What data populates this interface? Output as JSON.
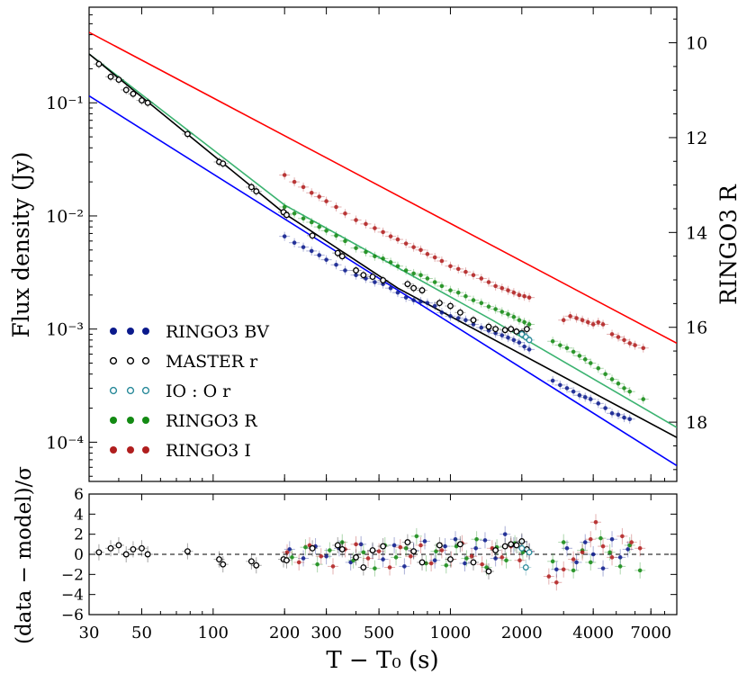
{
  "chart_data": [
    {
      "type": "scatter",
      "panel": "main",
      "xlabel": "T − T₀ (s)",
      "ylabel": "Flux density (Jy)",
      "ylabel_right": "RINGO3 R",
      "x_scale": "log",
      "y_scale": "log",
      "xlim": [
        30,
        9000
      ],
      "ylim": [
        4.5e-05,
        0.7
      ],
      "right_ylim": [
        19.25,
        9.25
      ],
      "x_ticks": [
        30,
        50,
        100,
        200,
        300,
        500,
        1000,
        2000,
        4000,
        7000
      ],
      "x_tick_labels": [
        "30",
        "50",
        "100",
        "200",
        "300",
        "500",
        "1000",
        "2000",
        "4000",
        "7000"
      ],
      "y_ticks": [
        0.0001,
        0.001,
        0.01,
        0.1
      ],
      "y_tick_labels": [
        "10⁻⁴",
        "10⁻³",
        "10⁻²",
        "10⁻¹"
      ],
      "right_ticks": [
        10,
        12,
        14,
        16,
        18
      ],
      "right_tick_labels": [
        "10",
        "12",
        "14",
        "16",
        "18"
      ],
      "legend_position": "lower-left",
      "legend": [
        {
          "label": "RINGO3  BV",
          "color": "#0b1a8c",
          "style": "filled"
        },
        {
          "label": "MASTER  r",
          "color": "#000000",
          "style": "open"
        },
        {
          "label": "IO : O  r",
          "color": "#2a8a9a",
          "style": "open"
        },
        {
          "label": "RINGO3  R",
          "color": "#138a13",
          "style": "filled"
        },
        {
          "label": "RINGO3  I",
          "color": "#b01e1e",
          "style": "filled"
        }
      ],
      "model_lines": [
        {
          "color": "#ff0000",
          "points": [
            [
              30,
              0.42
            ],
            [
              9000,
              0.00075
            ]
          ]
        },
        {
          "color": "#3cb371",
          "points": [
            [
              30,
              0.27
            ],
            [
              200,
              0.0125
            ],
            [
              1500,
              0.0012
            ],
            [
              9000,
              0.000135
            ]
          ]
        },
        {
          "color": "#000000",
          "points": [
            [
              30,
              0.27
            ],
            [
              200,
              0.0105
            ],
            [
              600,
              0.0023
            ],
            [
              9000,
              0.00011
            ]
          ]
        },
        {
          "color": "#0000ff",
          "points": [
            [
              30,
              0.115
            ],
            [
              9000,
              6.2e-05
            ]
          ]
        }
      ],
      "series": [
        {
          "name": "MASTER  r",
          "color": "#000000",
          "marker": "open",
          "x": [
            33,
            37,
            40,
            43,
            46,
            50,
            53,
            78,
            106,
            110,
            145,
            152,
            198,
            204,
            262,
            335,
            350,
            400,
            430,
            470,
            520,
            660,
            700,
            760,
            900,
            1000,
            1100,
            1250,
            1450,
            1550,
            1700,
            1800,
            1900,
            2000,
            2100
          ],
          "y": [
            0.22,
            0.17,
            0.16,
            0.13,
            0.12,
            0.105,
            0.1,
            0.053,
            0.03,
            0.029,
            0.018,
            0.0165,
            0.0108,
            0.0102,
            0.0067,
            0.0047,
            0.0044,
            0.0033,
            0.003,
            0.0029,
            0.0027,
            0.0025,
            0.0023,
            0.0022,
            0.0017,
            0.0016,
            0.0014,
            0.0012,
            0.00105,
            0.001,
            0.00098,
            0.001,
            0.00095,
            0.00092,
            0.001
          ]
        },
        {
          "name": "IO : O  r",
          "color": "#2a8a9a",
          "marker": "open",
          "x": [
            2000,
            2080,
            2150
          ],
          "y": [
            0.0009,
            0.00085,
            0.0008
          ]
        },
        {
          "name": "RINGO3  BV",
          "color": "#0b1a8c",
          "marker": "filled",
          "x": [
            200,
            220,
            240,
            260,
            280,
            300,
            330,
            360,
            400,
            440,
            480,
            520,
            560,
            600,
            650,
            700,
            750,
            800,
            860,
            920,
            1000,
            1080,
            1160,
            1250,
            1350,
            1450,
            1550,
            1650,
            1750,
            1850,
            1950,
            2050,
            2150,
            2700,
            2900,
            3100,
            3300,
            3500,
            3700,
            3900,
            4200,
            4500,
            4800,
            5100,
            5400,
            5700
          ],
          "y": [
            0.0066,
            0.0058,
            0.0053,
            0.0049,
            0.0045,
            0.0041,
            0.0037,
            0.0033,
            0.003,
            0.0028,
            0.0026,
            0.0025,
            0.0023,
            0.0021,
            0.0019,
            0.0018,
            0.00175,
            0.0017,
            0.0016,
            0.0014,
            0.0013,
            0.00125,
            0.0012,
            0.0011,
            0.00103,
            0.00097,
            0.00092,
            0.00088,
            0.00084,
            0.0008,
            0.00076,
            0.0007,
            0.00066,
            0.00035,
            0.00032,
            0.0003,
            0.00028,
            0.00026,
            0.00025,
            0.00024,
            0.00022,
            0.0002,
            0.00018,
            0.000175,
            0.000165,
            0.00016
          ]
        },
        {
          "name": "RINGO3  R",
          "color": "#138a13",
          "marker": "filled",
          "x": [
            200,
            220,
            240,
            260,
            280,
            300,
            330,
            360,
            400,
            440,
            480,
            520,
            560,
            600,
            650,
            700,
            750,
            800,
            860,
            920,
            1000,
            1080,
            1160,
            1250,
            1350,
            1450,
            1550,
            1650,
            1750,
            1850,
            1950,
            2050,
            2150,
            2700,
            2900,
            3100,
            3300,
            3500,
            3700,
            3900,
            4200,
            4500,
            4800,
            5100,
            5400,
            5700,
            6500
          ],
          "y": [
            0.012,
            0.0105,
            0.0095,
            0.0088,
            0.008,
            0.0074,
            0.0067,
            0.006,
            0.0052,
            0.0048,
            0.0044,
            0.0042,
            0.0039,
            0.0036,
            0.0033,
            0.0031,
            0.003,
            0.0028,
            0.0026,
            0.0024,
            0.0022,
            0.0021,
            0.00195,
            0.0018,
            0.0017,
            0.00158,
            0.0015,
            0.00142,
            0.00135,
            0.00128,
            0.0012,
            0.00115,
            0.0011,
            0.00078,
            0.00072,
            0.00068,
            0.00063,
            0.00058,
            0.00054,
            0.0005,
            0.00045,
            0.0004,
            0.00036,
            0.00033,
            0.0003,
            0.00028,
            0.00024
          ]
        },
        {
          "name": "RINGO3  I",
          "color": "#b01e1e",
          "marker": "filled",
          "x": [
            200,
            220,
            240,
            260,
            280,
            300,
            330,
            360,
            400,
            440,
            480,
            520,
            560,
            600,
            650,
            700,
            750,
            800,
            860,
            920,
            1000,
            1080,
            1160,
            1250,
            1350,
            1450,
            1550,
            1650,
            1750,
            1850,
            1950,
            2050,
            2150,
            3000,
            3200,
            3400,
            3600,
            3800,
            4000,
            4200,
            4400,
            4800,
            5100,
            5400,
            5700,
            6000,
            6500
          ],
          "y": [
            0.023,
            0.02,
            0.018,
            0.016,
            0.0148,
            0.0135,
            0.012,
            0.0105,
            0.0092,
            0.0085,
            0.0078,
            0.0072,
            0.0066,
            0.0062,
            0.0057,
            0.0053,
            0.005,
            0.0046,
            0.0043,
            0.004,
            0.0036,
            0.0034,
            0.0032,
            0.003,
            0.0028,
            0.0026,
            0.0024,
            0.0023,
            0.0022,
            0.0021,
            0.002,
            0.00195,
            0.0019,
            0.0012,
            0.0013,
            0.00125,
            0.0012,
            0.00115,
            0.0011,
            0.00115,
            0.0011,
            0.0009,
            0.00085,
            0.0008,
            0.00075,
            0.00072,
            0.00068
          ]
        }
      ]
    },
    {
      "type": "scatter",
      "panel": "residuals",
      "xlabel": "T − T₀ (s)",
      "ylabel": "(data − model)/σ",
      "x_scale": "log",
      "xlim": [
        30,
        9000
      ],
      "ylim": [
        -6,
        6
      ],
      "y_ticks": [
        -6,
        -4,
        -2,
        0,
        2,
        4,
        6
      ],
      "y_tick_labels": [
        "−6",
        "−4",
        "−2",
        "0",
        "2",
        "4",
        "6"
      ],
      "zero_line": true,
      "series": [
        {
          "name": "MASTER  r",
          "color": "#000000",
          "marker": "open",
          "x": [
            33,
            37,
            40,
            43,
            46,
            50,
            53,
            78,
            106,
            110,
            145,
            152,
            198,
            204,
            262,
            335,
            350,
            400,
            430,
            470,
            520,
            660,
            700,
            760,
            900,
            1000,
            1100,
            1250,
            1450,
            1550,
            1700,
            1800,
            1900,
            2000,
            2100
          ],
          "y": [
            0.2,
            0.6,
            0.9,
            0.0,
            0.5,
            0.6,
            0.0,
            0.3,
            -0.5,
            -1.0,
            -0.7,
            -1.1,
            -0.5,
            -0.6,
            0.6,
            0.9,
            0.5,
            -0.3,
            -1.3,
            0.4,
            0.8,
            1.2,
            0.3,
            -0.8,
            0.9,
            -0.5,
            1.0,
            -0.8,
            -1.7,
            0.4,
            0.8,
            1.0,
            0.9,
            1.3,
            0.5
          ]
        },
        {
          "name": "IO : O  r",
          "color": "#2a8a9a",
          "marker": "open",
          "x": [
            2000,
            2080,
            2150
          ],
          "y": [
            0.6,
            -1.3,
            0.2
          ]
        },
        {
          "name": "RINGO3  BV",
          "color": "#0b1a8c",
          "marker": "filled",
          "x": [
            210,
            240,
            270,
            300,
            340,
            380,
            420,
            470,
            520,
            580,
            640,
            700,
            780,
            860,
            950,
            1050,
            1150,
            1280,
            1400,
            1550,
            1700,
            1850,
            2000,
            2150,
            2800,
            3100,
            3400,
            3700,
            4000,
            4400,
            4800,
            5200,
            5600
          ],
          "y": [
            0.5,
            -0.4,
            0.8,
            -0.2,
            0.6,
            -0.8,
            1.0,
            0.3,
            -0.5,
            0.9,
            -1.2,
            0.4,
            1.3,
            -0.6,
            0.8,
            1.5,
            -0.9,
            0.6,
            1.4,
            -0.4,
            2.0,
            0.9,
            1.2,
            0.3,
            -1.5,
            0.6,
            -0.8,
            1.2,
            0.0,
            -1.4,
            1.5,
            -0.3,
            0.5
          ]
        },
        {
          "name": "RINGO3  R",
          "color": "#138a13",
          "marker": "filled",
          "x": [
            215,
            245,
            275,
            310,
            350,
            390,
            430,
            480,
            530,
            590,
            650,
            720,
            790,
            870,
            960,
            1060,
            1170,
            1290,
            1420,
            1570,
            1720,
            1870,
            2020,
            2700,
            3000,
            3300,
            3600,
            3900,
            4300,
            4700,
            5200,
            5700,
            6300
          ],
          "y": [
            -0.3,
            0.7,
            -1.0,
            0.4,
            1.2,
            -0.6,
            0.2,
            -1.4,
            0.9,
            -0.3,
            0.6,
            1.8,
            -0.9,
            0.3,
            -1.1,
            0.8,
            -0.4,
            1.5,
            -1.3,
            0.7,
            -0.6,
            1.1,
            0.2,
            -0.7,
            1.2,
            -1.6,
            0.4,
            -0.8,
            1.6,
            0.2,
            -1.2,
            0.9,
            -1.6
          ]
        },
        {
          "name": "RINGO3  I",
          "color": "#b01e1e",
          "marker": "filled",
          "x": [
            205,
            230,
            255,
            285,
            320,
            360,
            400,
            450,
            500,
            555,
            615,
            680,
            750,
            830,
            920,
            1010,
            1120,
            1230,
            1360,
            1500,
            1650,
            1800,
            1960,
            2150,
            2600,
            2800,
            3000,
            3300,
            3600,
            3900,
            4100,
            4400,
            4800,
            5300,
            5800,
            6300
          ],
          "y": [
            0.2,
            -0.8,
            0.9,
            -0.2,
            -1.2,
            0.5,
            1.0,
            -0.4,
            0.3,
            -1.3,
            0.7,
            -0.2,
            0.9,
            -0.9,
            0.4,
            -0.5,
            1.1,
            -0.2,
            -1.0,
            0.6,
            -0.3,
            0.8,
            -0.6,
            0.3,
            -2.2,
            -2.8,
            -1.5,
            -0.5,
            0.2,
            1.5,
            3.2,
            0.8,
            -0.3,
            1.8,
            1.2,
            0.6
          ]
        }
      ]
    }
  ]
}
